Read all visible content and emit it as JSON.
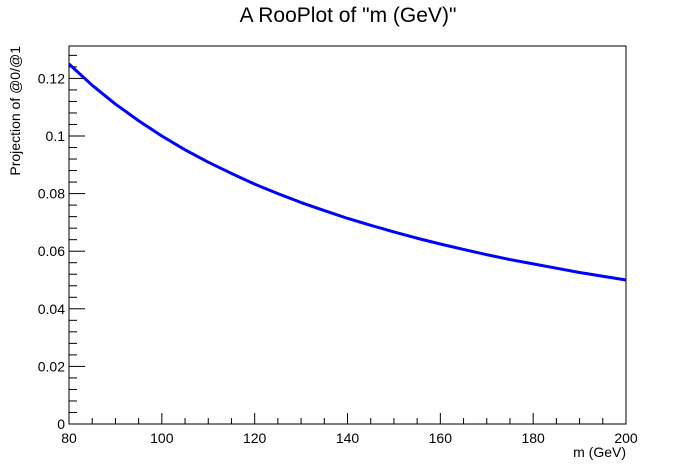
{
  "chart_data": {
    "type": "line",
    "title": "A RooPlot of \"m (GeV)\"",
    "xlabel": "m (GeV)",
    "ylabel": "Projection of @0/@1",
    "xlim": [
      80,
      200
    ],
    "ylim": [
      0,
      0.13125
    ],
    "x_ticks": [
      80,
      100,
      120,
      140,
      160,
      180,
      200
    ],
    "x_tick_labels": [
      "80",
      "100",
      "120",
      "140",
      "160",
      "180",
      "200"
    ],
    "y_ticks": [
      0,
      0.02,
      0.04,
      0.06,
      0.08,
      0.1,
      0.12
    ],
    "y_tick_labels": [
      "0",
      "0.02",
      "0.04",
      "0.06",
      "0.08",
      "0.1",
      "0.12"
    ],
    "grid": false,
    "series_color": "#0000ff",
    "series": [
      {
        "x": [
          80,
          85,
          90,
          95,
          100,
          105,
          110,
          115,
          120,
          125,
          130,
          135,
          140,
          145,
          150,
          155,
          160,
          165,
          170,
          175,
          180,
          185,
          190,
          195,
          200
        ],
        "y": [
          0.125,
          0.1176,
          0.1111,
          0.1053,
          0.1,
          0.0952,
          0.0909,
          0.087,
          0.0833,
          0.08,
          0.0769,
          0.0741,
          0.0714,
          0.069,
          0.0667,
          0.0645,
          0.0625,
          0.0606,
          0.0588,
          0.0571,
          0.0556,
          0.0541,
          0.0526,
          0.0513,
          0.05
        ]
      }
    ]
  }
}
